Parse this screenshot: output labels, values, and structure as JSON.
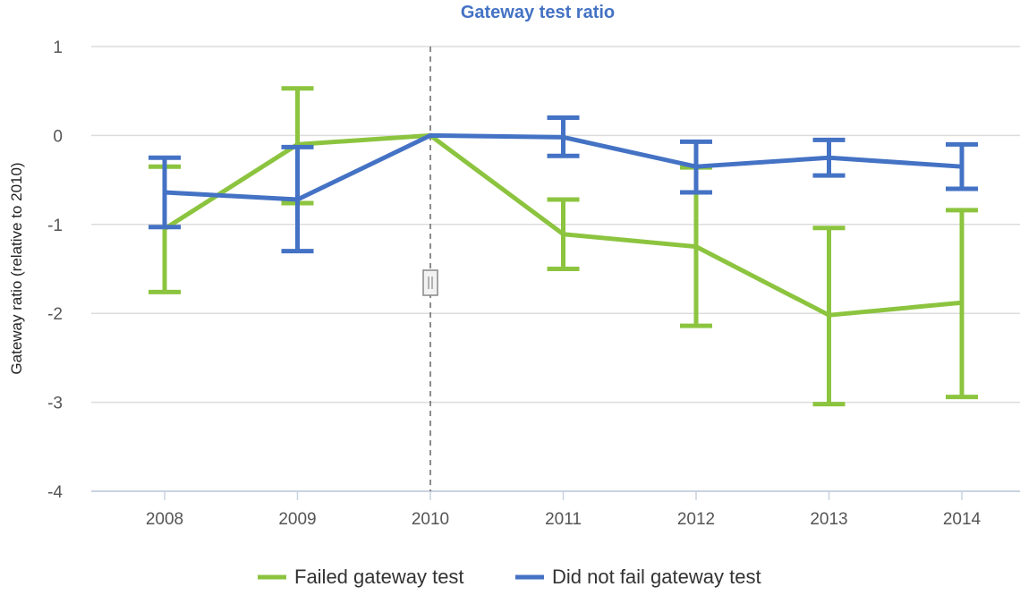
{
  "chart_data": {
    "type": "line",
    "title": "Gateway test ratio",
    "xlabel": "",
    "ylabel": "Gateway ratio (relative to 2010)",
    "ylim": [
      -4,
      1
    ],
    "yticks": [
      "1",
      "0",
      "-1",
      "-2",
      "-3",
      "-4"
    ],
    "categories": [
      "2008",
      "2009",
      "2010",
      "2011",
      "2012",
      "2013",
      "2014"
    ],
    "grid": true,
    "legend_position": "bottom",
    "reference_line": "2010",
    "series": [
      {
        "name": "Failed gateway test",
        "color": "#8cc43f",
        "values": [
          -1.05,
          -0.1,
          0,
          -1.11,
          -1.25,
          -2.02,
          -1.88
        ],
        "error_high": [
          -0.35,
          0.53,
          null,
          -0.72,
          -0.36,
          -1.04,
          -0.84
        ],
        "error_low": [
          -1.76,
          -0.76,
          null,
          -1.5,
          -2.14,
          -3.02,
          -2.94
        ]
      },
      {
        "name": "Did not fail gateway test",
        "color": "#4472c4",
        "values": [
          -0.64,
          -0.72,
          0,
          -0.02,
          -0.35,
          -0.25,
          -0.35
        ],
        "error_high": [
          -0.25,
          -0.13,
          null,
          0.2,
          -0.07,
          -0.05,
          -0.1
        ],
        "error_low": [
          -1.03,
          -1.3,
          null,
          -0.23,
          -0.64,
          -0.45,
          -0.6
        ]
      }
    ]
  }
}
